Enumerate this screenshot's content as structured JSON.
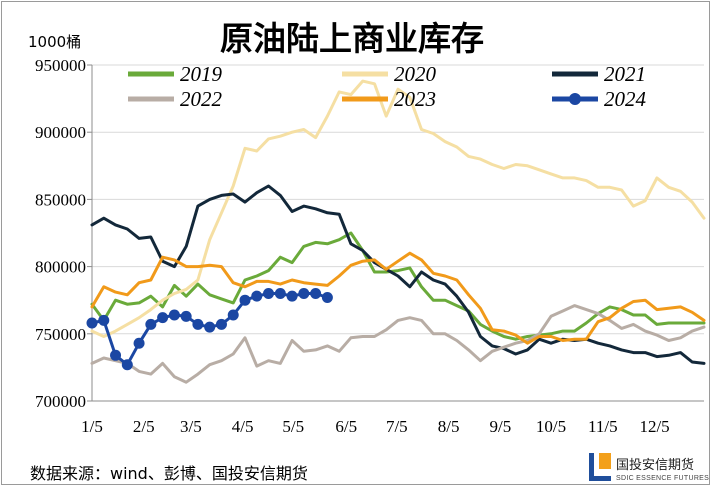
{
  "chart_data": {
    "type": "line",
    "title": "原油陆上商业库存",
    "ylabel": "1000桶",
    "xlabel": "",
    "ylim": [
      700000,
      950000
    ],
    "yticks": [
      700000,
      750000,
      800000,
      850000,
      900000,
      950000
    ],
    "xlim": [
      0,
      52
    ],
    "xticks": [
      {
        "label": "1/5",
        "week": 0
      },
      {
        "label": "2/5",
        "week": 4.4
      },
      {
        "label": "3/5",
        "week": 8.4
      },
      {
        "label": "4/5",
        "week": 12.8
      },
      {
        "label": "5/5",
        "week": 17.1
      },
      {
        "label": "6/5",
        "week": 21.6
      },
      {
        "label": "7/5",
        "week": 25.9
      },
      {
        "label": "8/5",
        "week": 30.3
      },
      {
        "label": "9/5",
        "week": 34.7
      },
      {
        "label": "10/5",
        "week": 39.0
      },
      {
        "label": "11/5",
        "week": 43.4
      },
      {
        "label": "12/5",
        "week": 47.8
      }
    ],
    "grid": "horizontal",
    "legend_position": "top",
    "series": [
      {
        "name": "2019",
        "color": "#6aaa3a",
        "width": 3,
        "markers": false,
        "values": [
          772,
          760,
          775,
          772,
          773,
          778,
          770,
          786,
          778,
          787,
          779,
          776,
          773,
          790,
          793,
          797,
          807,
          803,
          815,
          818,
          817,
          820,
          825,
          812,
          796,
          796,
          797,
          799,
          785,
          775,
          775,
          771,
          767,
          757,
          752,
          748,
          746,
          748,
          749,
          750,
          752,
          752,
          758,
          765,
          770,
          768,
          764,
          764,
          757,
          758,
          758,
          758,
          758
        ]
      },
      {
        "name": "2020",
        "color": "#f5dfa3",
        "width": 3,
        "markers": false,
        "values": [
          752,
          748,
          752,
          757,
          762,
          768,
          775,
          780,
          783,
          790,
          820,
          840,
          860,
          888,
          886,
          895,
          897,
          900,
          902,
          896,
          912,
          930,
          928,
          938,
          936,
          912,
          932,
          926,
          902,
          899,
          893,
          889,
          882,
          880,
          876,
          873,
          876,
          875,
          872,
          869,
          866,
          866,
          864,
          859,
          859,
          857,
          845,
          849,
          866,
          859,
          856,
          848,
          836
        ]
      },
      {
        "name": "2021",
        "color": "#13283a",
        "width": 3,
        "markers": false,
        "values": [
          831,
          836,
          831,
          828,
          821,
          822,
          804,
          800,
          815,
          845,
          850,
          853,
          854,
          848,
          855,
          860,
          853,
          841,
          845,
          843,
          840,
          839,
          817,
          812,
          803,
          798,
          793,
          785,
          796,
          790,
          787,
          778,
          766,
          748,
          741,
          739,
          735,
          738,
          746,
          743,
          746,
          745,
          746,
          743,
          741,
          738,
          736,
          736,
          733,
          734,
          736,
          729,
          728
        ]
      },
      {
        "name": "2022",
        "color": "#b8ada5",
        "width": 3,
        "markers": false,
        "values": [
          728,
          732,
          730,
          728,
          722,
          720,
          728,
          718,
          714,
          720,
          727,
          730,
          735,
          747,
          726,
          730,
          728,
          745,
          737,
          738,
          741,
          737,
          747,
          748,
          748,
          753,
          760,
          762,
          760,
          750,
          750,
          745,
          738,
          730,
          737,
          740,
          743,
          745,
          750,
          763,
          767,
          771,
          768,
          765,
          760,
          754,
          757,
          752,
          749,
          745,
          747,
          752,
          755
        ]
      },
      {
        "name": "2023",
        "color": "#f19a1a",
        "width": 3,
        "markers": false,
        "values": [
          770,
          785,
          781,
          779,
          788,
          790,
          807,
          805,
          800,
          800,
          801,
          800,
          788,
          785,
          789,
          789,
          787,
          790,
          788,
          787,
          786,
          793,
          801,
          804,
          805,
          798,
          804,
          810,
          805,
          795,
          793,
          790,
          779,
          769,
          753,
          752,
          749,
          743,
          748,
          748,
          745,
          746,
          746,
          759,
          762,
          769,
          774,
          775,
          768,
          769,
          770,
          766,
          760
        ]
      },
      {
        "name": "2024",
        "color": "#1b47a3",
        "width": 3,
        "markers": true,
        "values": [
          758,
          760,
          734,
          727,
          743,
          757,
          762,
          764,
          763,
          757,
          755,
          757,
          764,
          775,
          778,
          780,
          780,
          778,
          780,
          780,
          777
        ]
      }
    ]
  },
  "source": {
    "text": "数据来源：wind、彭博、国投安信期货"
  },
  "logo": {
    "name_cn": "国投安信期货",
    "name_en": "SDIC ESSENCE FUTURES"
  }
}
